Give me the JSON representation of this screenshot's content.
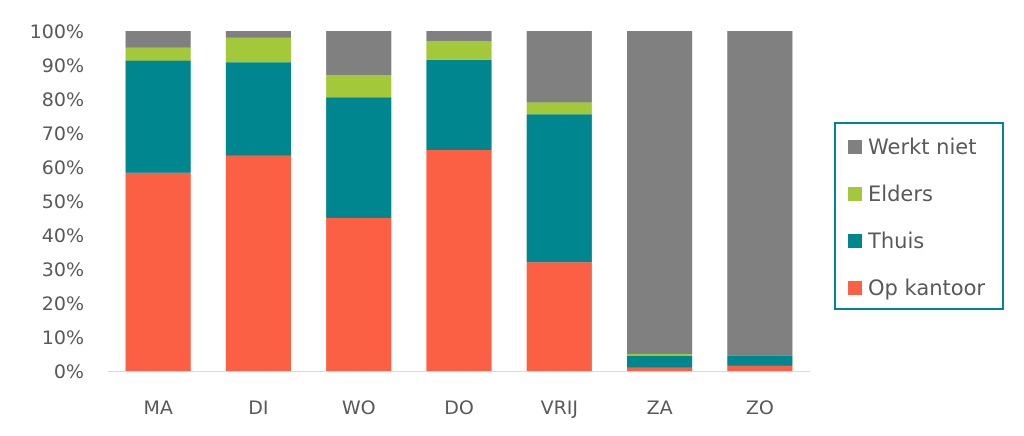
{
  "chart_data": {
    "type": "bar",
    "stacked": true,
    "categories": [
      "MA",
      "DI",
      "WO",
      "DO",
      "VRIJ",
      "ZA",
      "ZO"
    ],
    "series": [
      {
        "name": "Op kantoor",
        "color": "#fc6044",
        "values": [
          58.3,
          63.3,
          45.0,
          65.0,
          32.0,
          1.0,
          1.5
        ]
      },
      {
        "name": "Thuis",
        "color": "#00868f",
        "values": [
          33.0,
          27.5,
          35.5,
          26.5,
          43.5,
          3.5,
          3.0
        ]
      },
      {
        "name": "Elders",
        "color": "#a3c93a",
        "values": [
          3.8,
          7.2,
          6.5,
          5.5,
          3.5,
          0.5,
          0.0
        ]
      },
      {
        "name": "Werkt niet",
        "color": "#808080",
        "values": [
          4.9,
          2.0,
          13.0,
          3.0,
          21.0,
          95.0,
          95.5
        ]
      }
    ],
    "yticks": [
      "0%",
      "10%",
      "20%",
      "30%",
      "40%",
      "50%",
      "60%",
      "70%",
      "80%",
      "90%",
      "100%"
    ],
    "ylim": [
      0,
      100
    ],
    "title": "",
    "xlabel": "",
    "ylabel": "",
    "grid": false,
    "legend_position": "right",
    "legend_order": [
      "Werkt niet",
      "Elders",
      "Thuis",
      "Op kantoor"
    ],
    "legend_border_color": "#00868f",
    "axis_color": "#d9d9d9",
    "text_color": "#595959"
  }
}
